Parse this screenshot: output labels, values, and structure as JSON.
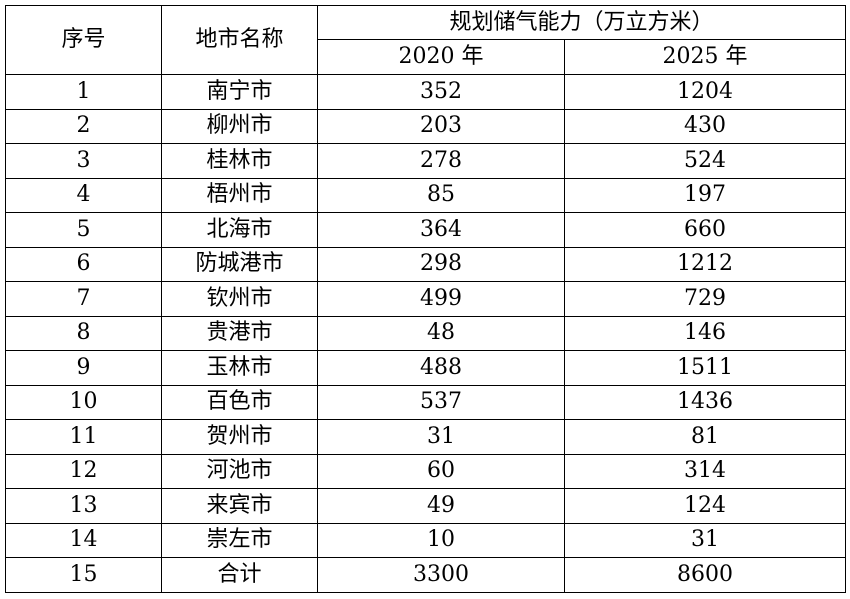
{
  "table": {
    "headers": {
      "index": "序号",
      "city": "地市名称",
      "capacity_group": "规划储气能力（万立方米）",
      "year_2020": "2020 年",
      "year_2025": "2025 年"
    },
    "rows": [
      {
        "index": "1",
        "city": "南宁市",
        "y2020": "352",
        "y2025": "1204"
      },
      {
        "index": "2",
        "city": "柳州市",
        "y2020": "203",
        "y2025": "430"
      },
      {
        "index": "3",
        "city": "桂林市",
        "y2020": "278",
        "y2025": "524"
      },
      {
        "index": "4",
        "city": "梧州市",
        "y2020": "85",
        "y2025": "197"
      },
      {
        "index": "5",
        "city": "北海市",
        "y2020": "364",
        "y2025": "660"
      },
      {
        "index": "6",
        "city": "防城港市",
        "y2020": "298",
        "y2025": "1212"
      },
      {
        "index": "7",
        "city": "钦州市",
        "y2020": "499",
        "y2025": "729"
      },
      {
        "index": "8",
        "city": "贵港市",
        "y2020": "48",
        "y2025": "146"
      },
      {
        "index": "9",
        "city": "玉林市",
        "y2020": "488",
        "y2025": "1511"
      },
      {
        "index": "10",
        "city": "百色市",
        "y2020": "537",
        "y2025": "1436"
      },
      {
        "index": "11",
        "city": "贺州市",
        "y2020": "31",
        "y2025": "81"
      },
      {
        "index": "12",
        "city": "河池市",
        "y2020": "60",
        "y2025": "314"
      },
      {
        "index": "13",
        "city": "来宾市",
        "y2020": "49",
        "y2025": "124"
      },
      {
        "index": "14",
        "city": "崇左市",
        "y2020": "10",
        "y2025": "31"
      },
      {
        "index": "15",
        "city": "合计",
        "y2020": "3300",
        "y2025": "8600"
      }
    ]
  }
}
